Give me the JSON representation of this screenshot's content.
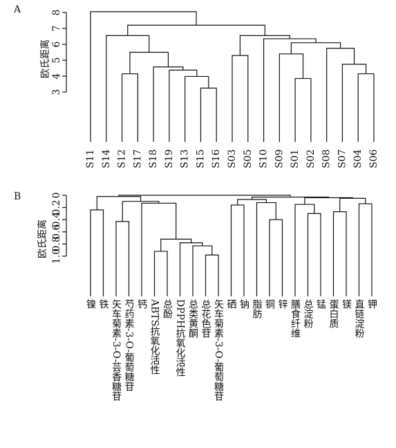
{
  "chart_data": [
    {
      "type": "dendrogram",
      "title": "A",
      "y_label": "欧氏距离",
      "ylim": [
        3,
        8
      ],
      "yticks": [
        3,
        4,
        5,
        6,
        7,
        8
      ],
      "leaves": [
        "S11",
        "S14",
        "S12",
        "S17",
        "S18",
        "S19",
        "S13",
        "S15",
        "S16",
        "S03",
        "S05",
        "S10",
        "S09",
        "S01",
        "S02",
        "S08",
        "S07",
        "S04",
        "S06"
      ],
      "merges": [
        {
          "left": 7,
          "right": 8,
          "height": 3.25
        },
        {
          "left": 2,
          "right": 3,
          "height": 4.15
        },
        {
          "left": 6,
          "right": 19,
          "height": 3.98
        },
        {
          "left": 5,
          "right": 21,
          "height": 4.38
        },
        {
          "left": 4,
          "right": 22,
          "height": 4.58
        },
        {
          "left": 20,
          "right": 23,
          "height": 5.5
        },
        {
          "left": 1,
          "right": 24,
          "height": 6.55
        },
        {
          "left": 13,
          "right": 14,
          "height": 3.85
        },
        {
          "left": 12,
          "right": 26,
          "height": 5.4
        },
        {
          "left": 17,
          "right": 18,
          "height": 4.15
        },
        {
          "left": 16,
          "right": 28,
          "height": 4.75
        },
        {
          "left": 15,
          "right": 29,
          "height": 5.75
        },
        {
          "left": 27,
          "right": 30,
          "height": 6.1
        },
        {
          "left": 11,
          "right": 31,
          "height": 6.35
        },
        {
          "left": 9,
          "right": 10,
          "height": 5.3
        },
        {
          "left": 33,
          "right": 32,
          "height": 6.55
        },
        {
          "left": 25,
          "right": 34,
          "height": 7.2
        },
        {
          "left": 0,
          "right": 35,
          "height": 8.05
        }
      ]
    },
    {
      "type": "dendrogram",
      "title": "B",
      "y_label": "欧氏距离",
      "ylim": [
        1,
        0
      ],
      "yticks": [
        {
          "value": 1,
          "label": "1.0"
        },
        0.8,
        0.6,
        0.4,
        0.2,
        0
      ],
      "leaves": [
        "镍",
        "铁",
        "矢车菊素-3-O-芸香糖苷",
        "芍药素-3-O-葡萄糖苷",
        "钙",
        "ABTS抗氧化活性",
        "总酚",
        "DPPH抗氧化活性",
        "总类黄酮",
        "总花色苷",
        "矢车菊素-3-O-葡萄糖苷",
        "硒",
        "钠",
        "脂肪",
        "铜",
        "锌",
        "膳食纤维",
        "总淀粉",
        "锰",
        "蛋白质",
        "镁",
        "直链淀粉",
        "钾"
      ],
      "merges": [
        {
          "left": 0,
          "right": 1,
          "height": 0.24
        },
        {
          "left": 2,
          "right": 3,
          "height": 0.43
        },
        {
          "left": 5,
          "right": 6,
          "height": 0.92
        },
        {
          "left": 9,
          "right": 10,
          "height": 0.98
        },
        {
          "left": 8,
          "right": 26,
          "height": 0.83
        },
        {
          "left": 7,
          "right": 27,
          "height": 0.78
        },
        {
          "left": 25,
          "right": 28,
          "height": 0.72
        },
        {
          "left": 4,
          "right": 29,
          "height": 0.13
        },
        {
          "left": 24,
          "right": 30,
          "height": 0.1
        },
        {
          "left": 23,
          "right": 31,
          "height": 0.02
        },
        {
          "left": 11,
          "right": 12,
          "height": 0.16
        },
        {
          "left": 14,
          "right": 15,
          "height": 0.4
        },
        {
          "left": 13,
          "right": 34,
          "height": 0.12
        },
        {
          "left": 33,
          "right": 35,
          "height": 0.07
        },
        {
          "left": 17,
          "right": 18,
          "height": 0.3
        },
        {
          "left": 16,
          "right": 37,
          "height": 0.15
        },
        {
          "left": 19,
          "right": 20,
          "height": 0.27
        },
        {
          "left": 21,
          "right": 22,
          "height": 0.14
        },
        {
          "left": 39,
          "right": 40,
          "height": 0.05
        },
        {
          "left": 38,
          "right": 41,
          "height": 0.04
        },
        {
          "left": 36,
          "right": 42,
          "height": 0.03
        },
        {
          "left": 32,
          "right": 43,
          "height": 0
        }
      ]
    }
  ]
}
